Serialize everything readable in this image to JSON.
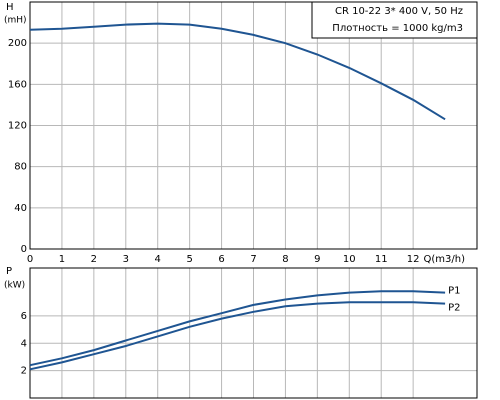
{
  "chart_data": [
    {
      "type": "line",
      "y_label": "H",
      "y_unit": "(mH)",
      "x_label": "Q(m3/h)",
      "notes": [
        "CR 10-22    3* 400 V, 50 Hz",
        "Плотность = 1000 kg/m3"
      ],
      "x": [
        0,
        1,
        2,
        3,
        4,
        5,
        6,
        7,
        8,
        9,
        10,
        11,
        12,
        13
      ],
      "series": [
        {
          "name": "H",
          "color": "#1f5592",
          "values": [
            213,
            214,
            216,
            218,
            219,
            218,
            214,
            208,
            200,
            189,
            176,
            161,
            145,
            126
          ]
        }
      ],
      "xlim": [
        0,
        14
      ],
      "ylim": [
        0,
        240
      ],
      "xticks": [
        0,
        1,
        2,
        3,
        4,
        5,
        6,
        7,
        8,
        9,
        10,
        11,
        12
      ],
      "yticks": [
        0,
        40,
        80,
        120,
        160,
        200
      ],
      "grid": true
    },
    {
      "type": "line",
      "y_label": "P",
      "y_unit": "(kW)",
      "x": [
        0,
        1,
        2,
        3,
        4,
        5,
        6,
        7,
        8,
        9,
        10,
        11,
        12,
        13
      ],
      "series": [
        {
          "name": "P1",
          "color": "#1f5592",
          "values": [
            2.4,
            2.9,
            3.5,
            4.2,
            4.9,
            5.6,
            6.2,
            6.8,
            7.2,
            7.5,
            7.7,
            7.8,
            7.8,
            7.7
          ]
        },
        {
          "name": "P2",
          "color": "#1f5592",
          "values": [
            2.1,
            2.6,
            3.2,
            3.8,
            4.5,
            5.2,
            5.8,
            6.3,
            6.7,
            6.9,
            7.0,
            7.0,
            7.0,
            6.9
          ]
        }
      ],
      "xlim": [
        0,
        14
      ],
      "ylim": [
        0,
        9.5
      ],
      "yticks": [
        2,
        4,
        6
      ],
      "grid": true
    }
  ]
}
